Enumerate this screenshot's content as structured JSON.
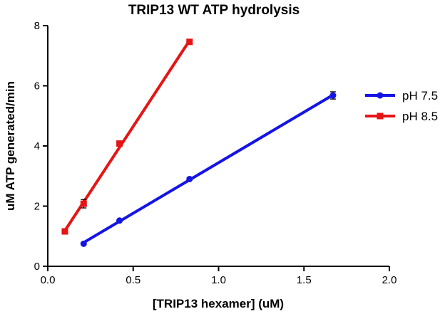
{
  "chart_data": {
    "type": "scatter",
    "title": "TRIP13 WT ATP hydrolysis",
    "xlabel": "[TRIP13 hexamer] (uM)",
    "ylabel": "uM ATP generated/min",
    "xlim": [
      0,
      2.0
    ],
    "ylim": [
      0,
      8
    ],
    "xticks": [
      "0.0",
      "0.5",
      "1.0",
      "1.5",
      "2.0"
    ],
    "yticks": [
      "0",
      "2",
      "4",
      "6",
      "8"
    ],
    "grid": false,
    "legend_position": "right",
    "series": [
      {
        "name": "pH 7.5",
        "color": "#1414e6",
        "marker": "circle",
        "fit": "linear",
        "x": [
          0.21,
          0.42,
          0.83,
          1.67
        ],
        "y": [
          0.75,
          1.52,
          2.9,
          5.68
        ],
        "yerr": [
          0.03,
          0.03,
          0.04,
          0.12
        ]
      },
      {
        "name": "pH 8.5",
        "color": "#e61414",
        "marker": "square",
        "fit": "linear",
        "x": [
          0.1,
          0.21,
          0.42,
          0.83
        ],
        "y": [
          1.16,
          2.08,
          4.08,
          7.46
        ],
        "yerr": [
          0.04,
          0.14,
          0.06,
          0.05
        ]
      }
    ]
  }
}
